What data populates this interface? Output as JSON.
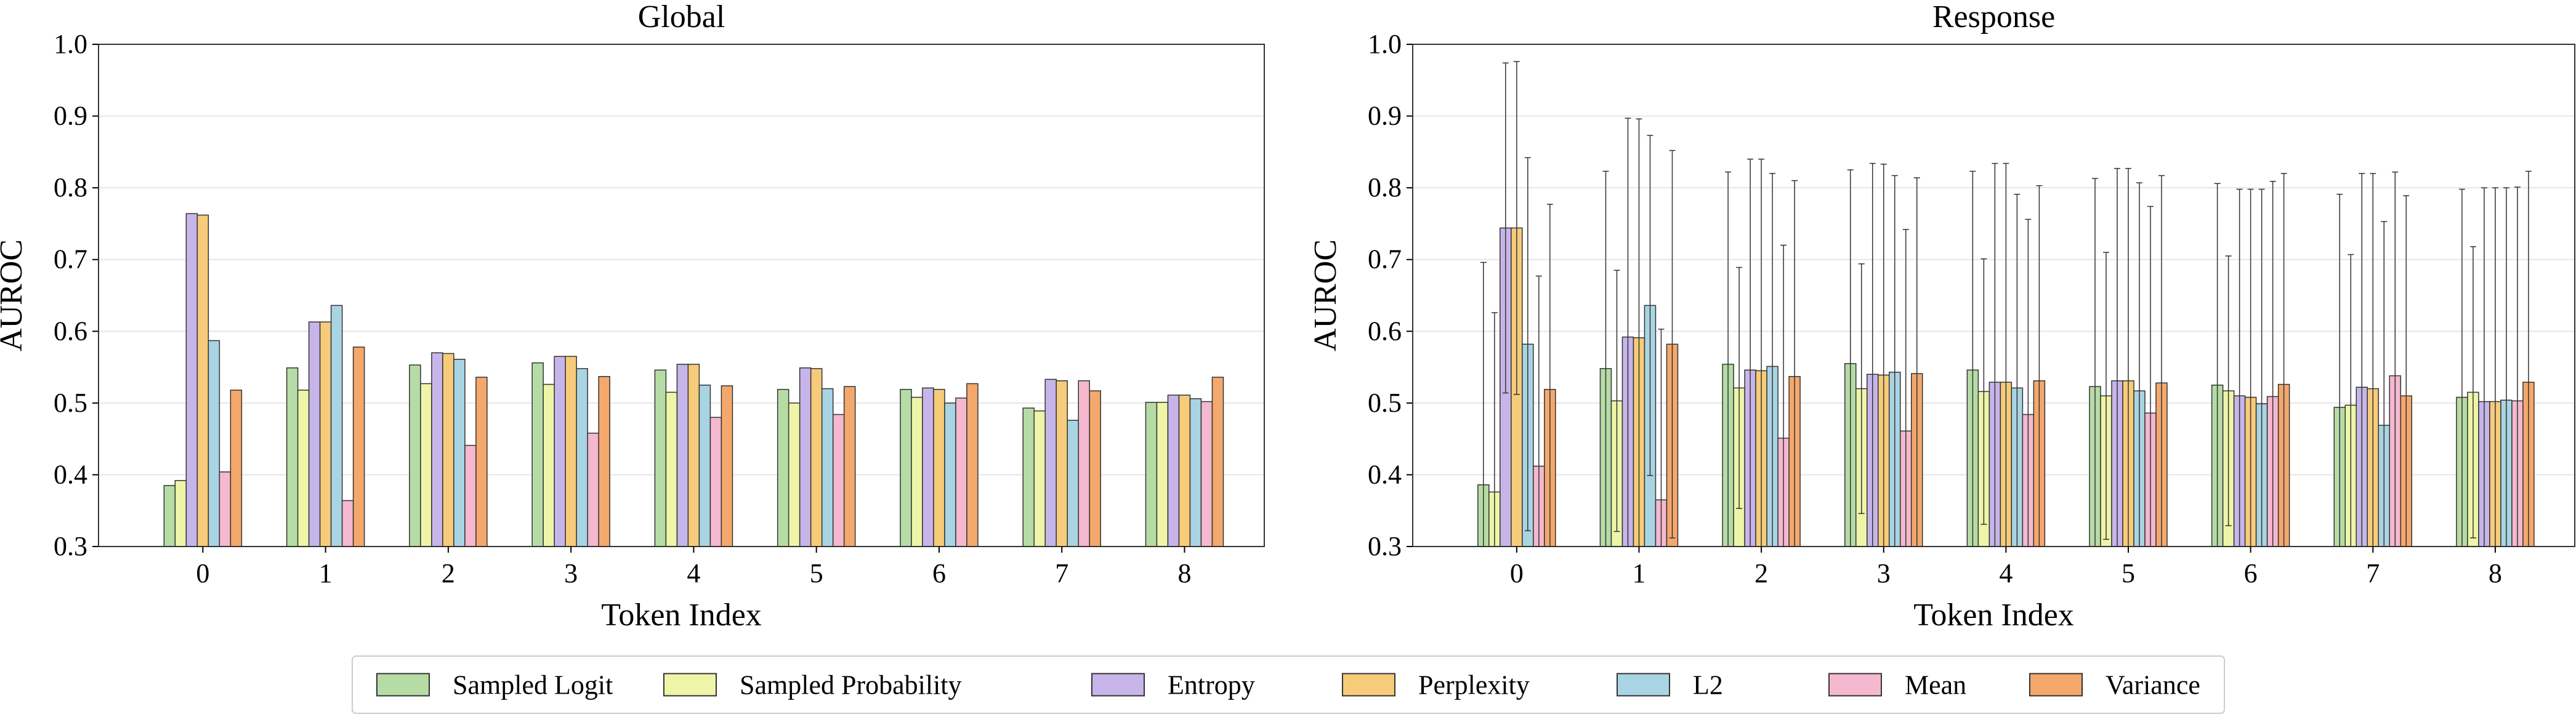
{
  "chart_data": [
    {
      "type": "bar",
      "title": "Global",
      "xlabel": "Token Index",
      "ylabel": "AUROC",
      "ylim": [
        0.3,
        1.0
      ],
      "yticks": [
        "0.3",
        "0.4",
        "0.5",
        "0.6",
        "0.7",
        "0.8",
        "0.9",
        "1.0"
      ],
      "categories": [
        "0",
        "1",
        "2",
        "3",
        "4",
        "5",
        "6",
        "7",
        "8"
      ],
      "grid": "horizontal",
      "series": [
        {
          "name": "Sampled Logit",
          "values": [
            0.385,
            0.549,
            0.553,
            0.556,
            0.546,
            0.519,
            0.519,
            0.493,
            0.501
          ]
        },
        {
          "name": "Sampled Probability",
          "values": [
            0.392,
            0.518,
            0.527,
            0.526,
            0.515,
            0.5,
            0.508,
            0.489,
            0.501
          ]
        },
        {
          "name": "Entropy",
          "values": [
            0.764,
            0.613,
            0.57,
            0.565,
            0.554,
            0.549,
            0.521,
            0.533,
            0.511
          ]
        },
        {
          "name": "Perplexity",
          "values": [
            0.762,
            0.613,
            0.569,
            0.565,
            0.554,
            0.548,
            0.519,
            0.531,
            0.511
          ]
        },
        {
          "name": "L2",
          "values": [
            0.587,
            0.636,
            0.561,
            0.548,
            0.525,
            0.52,
            0.5,
            0.476,
            0.506
          ]
        },
        {
          "name": "Mean",
          "values": [
            0.404,
            0.364,
            0.441,
            0.458,
            0.48,
            0.484,
            0.507,
            0.531,
            0.502
          ]
        },
        {
          "name": "Variance",
          "values": [
            0.518,
            0.578,
            0.536,
            0.537,
            0.524,
            0.523,
            0.527,
            0.517,
            0.536
          ]
        }
      ]
    },
    {
      "type": "bar",
      "title": "Response",
      "xlabel": "Token Index",
      "ylabel": "AUROC",
      "ylim": [
        0.3,
        1.0
      ],
      "yticks": [
        "0.3",
        "0.4",
        "0.5",
        "0.6",
        "0.7",
        "0.8",
        "0.9",
        "1.0"
      ],
      "categories": [
        "0",
        "1",
        "2",
        "3",
        "4",
        "5",
        "6",
        "7",
        "8"
      ],
      "grid": "horizontal",
      "error_bars": true,
      "series": [
        {
          "name": "Sampled Logit",
          "values": [
            0.386,
            0.548,
            0.554,
            0.555,
            0.546,
            0.523,
            0.525,
            0.494,
            0.508
          ],
          "errors": [
            0.31,
            0.275,
            0.268,
            0.27,
            0.277,
            0.29,
            0.281,
            0.297,
            0.29
          ]
        },
        {
          "name": "Sampled Probability",
          "values": [
            0.376,
            0.503,
            0.521,
            0.52,
            0.516,
            0.51,
            0.517,
            0.497,
            0.515
          ],
          "errors": [
            0.25,
            0.182,
            0.168,
            0.174,
            0.185,
            0.2,
            0.188,
            0.21,
            0.203
          ]
        },
        {
          "name": "Entropy",
          "values": [
            0.744,
            0.592,
            0.546,
            0.54,
            0.529,
            0.531,
            0.51,
            0.522,
            0.502
          ],
          "errors": [
            0.23,
            0.305,
            0.294,
            0.294,
            0.305,
            0.296,
            0.288,
            0.298,
            0.298
          ]
        },
        {
          "name": "Perplexity",
          "values": [
            0.744,
            0.591,
            0.545,
            0.539,
            0.529,
            0.531,
            0.508,
            0.52,
            0.502
          ],
          "errors": [
            0.232,
            0.305,
            0.295,
            0.294,
            0.305,
            0.296,
            0.29,
            0.3,
            0.298
          ]
        },
        {
          "name": "L2",
          "values": [
            0.582,
            0.636,
            0.551,
            0.543,
            0.521,
            0.517,
            0.499,
            0.469,
            0.504
          ],
          "errors": [
            0.26,
            0.237,
            0.269,
            0.274,
            0.27,
            0.29,
            0.299,
            0.284,
            0.296
          ]
        },
        {
          "name": "Mean",
          "values": [
            0.412,
            0.365,
            0.451,
            0.461,
            0.484,
            0.486,
            0.509,
            0.538,
            0.503
          ],
          "errors": [
            0.265,
            0.238,
            0.269,
            0.281,
            0.272,
            0.288,
            0.3,
            0.284,
            0.298
          ]
        },
        {
          "name": "Variance",
          "values": [
            0.519,
            0.582,
            0.537,
            0.541,
            0.531,
            0.528,
            0.526,
            0.51,
            0.529
          ],
          "errors": [
            0.258,
            0.27,
            0.273,
            0.273,
            0.272,
            0.289,
            0.294,
            0.279,
            0.294
          ]
        }
      ]
    }
  ],
  "legend": {
    "placement": "bottom-center",
    "items": [
      "Sampled Logit",
      "Sampled Probability",
      "Entropy",
      "Perplexity",
      "L2",
      "Mean",
      "Variance"
    ]
  },
  "colors": {
    "Sampled Logit": "#b6dca6",
    "Sampled Probability": "#eef5a8",
    "Entropy": "#c7b5ea",
    "Perplexity": "#f6cc7a",
    "L2": "#a9d4e3",
    "Mean": "#f4b8cf",
    "Variance": "#f4a86c",
    "bar_edge": "#333333",
    "grid": "#e6e6e6",
    "error_bar": "#333333"
  }
}
